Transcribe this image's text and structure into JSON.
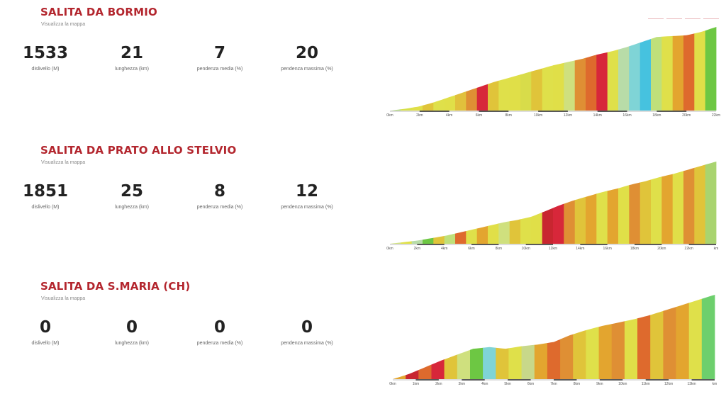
{
  "climbs": [
    {
      "title": "SALITA DA BORMIO",
      "map_link": "Visualizza la mappa",
      "stats": [
        {
          "value": "1533",
          "label": "dislivello (M)"
        },
        {
          "value": "21",
          "label": "lunghezza (km)"
        },
        {
          "value": "7",
          "label": "pendenza media (%)"
        },
        {
          "value": "20",
          "label": "pendenza massima (%)"
        }
      ],
      "profile": {
        "ticks": [
          "0km",
          "2km",
          "4km",
          "6km",
          "8km",
          "10km",
          "12km",
          "14km",
          "16km",
          "18km",
          "20km",
          "22km"
        ],
        "heights": [
          0,
          0.02,
          0.05,
          0.1,
          0.16,
          0.22,
          0.28,
          0.34,
          0.39,
          0.44,
          0.49,
          0.54,
          0.58,
          0.62,
          0.67,
          0.71,
          0.76,
          0.82,
          0.88,
          0.89,
          0.9,
          0.94,
          1.0
        ],
        "colors": [
          "#a9d46f",
          "#d7e04a",
          "#e0df48",
          "#e0c43a",
          "#dfe04a",
          "#e0df48",
          "#e1c03c",
          "#df8f34",
          "#d7273a",
          "#e0c43a",
          "#dfe04a",
          "#e0df48",
          "#d8dc4a",
          "#e0c43a",
          "#dfe04a",
          "#e0df48",
          "#cfe07e",
          "#df8f34",
          "#de6a2d",
          "#d7273a",
          "#dfe04a",
          "#b8dca8",
          "#7fd4d6",
          "#46c2df",
          "#bfe07a",
          "#dfe04a",
          "#e3a52f",
          "#de6a2d",
          "#e0df48",
          "#6dc743"
        ]
      }
    },
    {
      "title": "SALITA DA PRATO ALLO STELVIO",
      "map_link": "Visualizza la mappa",
      "stats": [
        {
          "value": "1851",
          "label": "dislivello (M)"
        },
        {
          "value": "25",
          "label": "lunghezza (km)"
        },
        {
          "value": "8",
          "label": "pendenza media (%)"
        },
        {
          "value": "12",
          "label": "pendenza massima (%)"
        }
      ],
      "profile": {
        "ticks": [
          "0km",
          "2km",
          "4km",
          "6km",
          "8km",
          "10km",
          "12km",
          "14km",
          "16km",
          "18km",
          "20km",
          "22km",
          "km"
        ],
        "heights": [
          0,
          0.02,
          0.04,
          0.07,
          0.1,
          0.14,
          0.18,
          0.22,
          0.26,
          0.29,
          0.33,
          0.4,
          0.47,
          0.53,
          0.58,
          0.63,
          0.67,
          0.72,
          0.76,
          0.81,
          0.85,
          0.9,
          0.95,
          1.0
        ],
        "colors": [
          "#cfe07e",
          "#dfe04a",
          "#b8dca8",
          "#6dc743",
          "#e0c43a",
          "#bfe07a",
          "#de6a2d",
          "#dfe04a",
          "#e3a52f",
          "#e0df48",
          "#cfe07e",
          "#e0c43a",
          "#dfe04a",
          "#e0df48",
          "#c82630",
          "#d7273a",
          "#df8f34",
          "#e0c43a",
          "#e3a52f",
          "#dfe04a",
          "#e3a52f",
          "#e0df48",
          "#df8f34",
          "#e0c43a",
          "#dfe04a",
          "#e3a52f",
          "#e0df48",
          "#df8f34",
          "#e0c43a",
          "#a9d46f"
        ]
      }
    },
    {
      "title": "SALITA DA S.MARIA (CH)",
      "map_link": "Visualizza la mappa",
      "stats": [
        {
          "value": "0",
          "label": "dislivello (M)"
        },
        {
          "value": "0",
          "label": "lunghezza (km)"
        },
        {
          "value": "0",
          "label": "pendenza media (%)"
        },
        {
          "value": "0",
          "label": "pendenza massima (%)"
        }
      ],
      "profile": {
        "ticks": [
          "0km",
          "1km",
          "2km",
          "3km",
          "4km",
          "5km",
          "6km",
          "7km",
          "8km",
          "9km",
          "10km",
          "11km",
          "12km",
          "13km",
          "km"
        ],
        "heights": [
          0,
          0.06,
          0.14,
          0.22,
          0.29,
          0.36,
          0.38,
          0.36,
          0.39,
          0.41,
          0.44,
          0.52,
          0.58,
          0.63,
          0.67,
          0.71,
          0.76,
          0.82,
          0.88,
          0.94,
          1.0
        ],
        "colors": [
          "#e3a52f",
          "#c82630",
          "#de6a2d",
          "#d7273a",
          "#e0c43a",
          "#cfe07e",
          "#6dc743",
          "#7fd4d6",
          "#e0c43a",
          "#dfe04a",
          "#c8d88a",
          "#e3a52f",
          "#de6a2d",
          "#df8f34",
          "#e0c43a",
          "#dfe04a",
          "#e3a52f",
          "#df8f34",
          "#e0df48",
          "#de6a2d",
          "#e0c43a",
          "#df8f34",
          "#e3a52f",
          "#dfe04a",
          "#6dcf6d"
        ]
      }
    }
  ]
}
